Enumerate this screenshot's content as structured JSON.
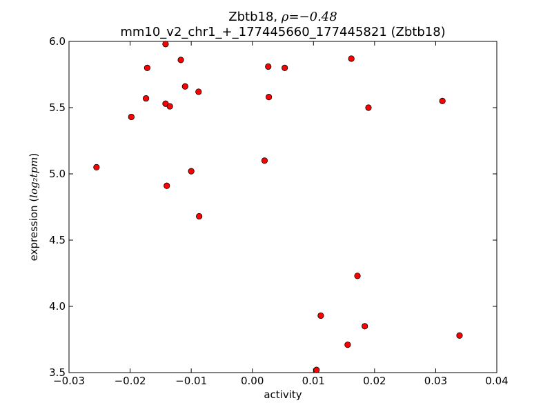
{
  "chart_data": {
    "type": "scatter",
    "title_line1_prefix": "Zbtb18, ",
    "title_line1_rho": "ρ=−0.48",
    "title_line2": "mm10_v2_chr1_+_177445660_177445821 (Zbtb18)",
    "xlabel": "activity",
    "ylabel_prefix": "expression (",
    "ylabel_unit": "log₂tpm",
    "ylabel_suffix": ")",
    "xlim": [
      -0.03,
      0.04
    ],
    "ylim": [
      3.5,
      6.0
    ],
    "xticks": [
      {
        "value": -0.03,
        "label": "−0.03"
      },
      {
        "value": -0.02,
        "label": "−0.02"
      },
      {
        "value": -0.01,
        "label": "−0.01"
      },
      {
        "value": 0.0,
        "label": "0.00"
      },
      {
        "value": 0.01,
        "label": "0.01"
      },
      {
        "value": 0.02,
        "label": "0.02"
      },
      {
        "value": 0.03,
        "label": "0.03"
      },
      {
        "value": 0.04,
        "label": "0.04"
      }
    ],
    "yticks": [
      {
        "value": 3.5,
        "label": "3.5"
      },
      {
        "value": 4.0,
        "label": "4.0"
      },
      {
        "value": 4.5,
        "label": "4.5"
      },
      {
        "value": 5.0,
        "label": "5.0"
      },
      {
        "value": 5.5,
        "label": "5.5"
      },
      {
        "value": 6.0,
        "label": "6.0"
      }
    ],
    "grid": false,
    "marker_color": "#ff0000",
    "marker_edge": "#000000",
    "points": [
      {
        "x": -0.0255,
        "y": 5.05
      },
      {
        "x": -0.0198,
        "y": 5.43
      },
      {
        "x": -0.0174,
        "y": 5.57
      },
      {
        "x": -0.0172,
        "y": 5.8
      },
      {
        "x": -0.0142,
        "y": 5.98
      },
      {
        "x": -0.0142,
        "y": 5.53
      },
      {
        "x": -0.014,
        "y": 4.91
      },
      {
        "x": -0.0135,
        "y": 5.51
      },
      {
        "x": -0.0117,
        "y": 5.86
      },
      {
        "x": -0.011,
        "y": 5.66
      },
      {
        "x": -0.01,
        "y": 5.02
      },
      {
        "x": -0.0088,
        "y": 5.62
      },
      {
        "x": -0.0087,
        "y": 4.68
      },
      {
        "x": 0.002,
        "y": 5.1
      },
      {
        "x": 0.0026,
        "y": 5.81
      },
      {
        "x": 0.0027,
        "y": 5.58
      },
      {
        "x": 0.0053,
        "y": 5.8
      },
      {
        "x": 0.0105,
        "y": 3.52
      },
      {
        "x": 0.0112,
        "y": 3.93
      },
      {
        "x": 0.0156,
        "y": 3.71
      },
      {
        "x": 0.0162,
        "y": 5.87
      },
      {
        "x": 0.0172,
        "y": 4.23
      },
      {
        "x": 0.0184,
        "y": 3.85
      },
      {
        "x": 0.019,
        "y": 5.5
      },
      {
        "x": 0.0311,
        "y": 5.55
      },
      {
        "x": 0.0339,
        "y": 3.78
      }
    ]
  }
}
